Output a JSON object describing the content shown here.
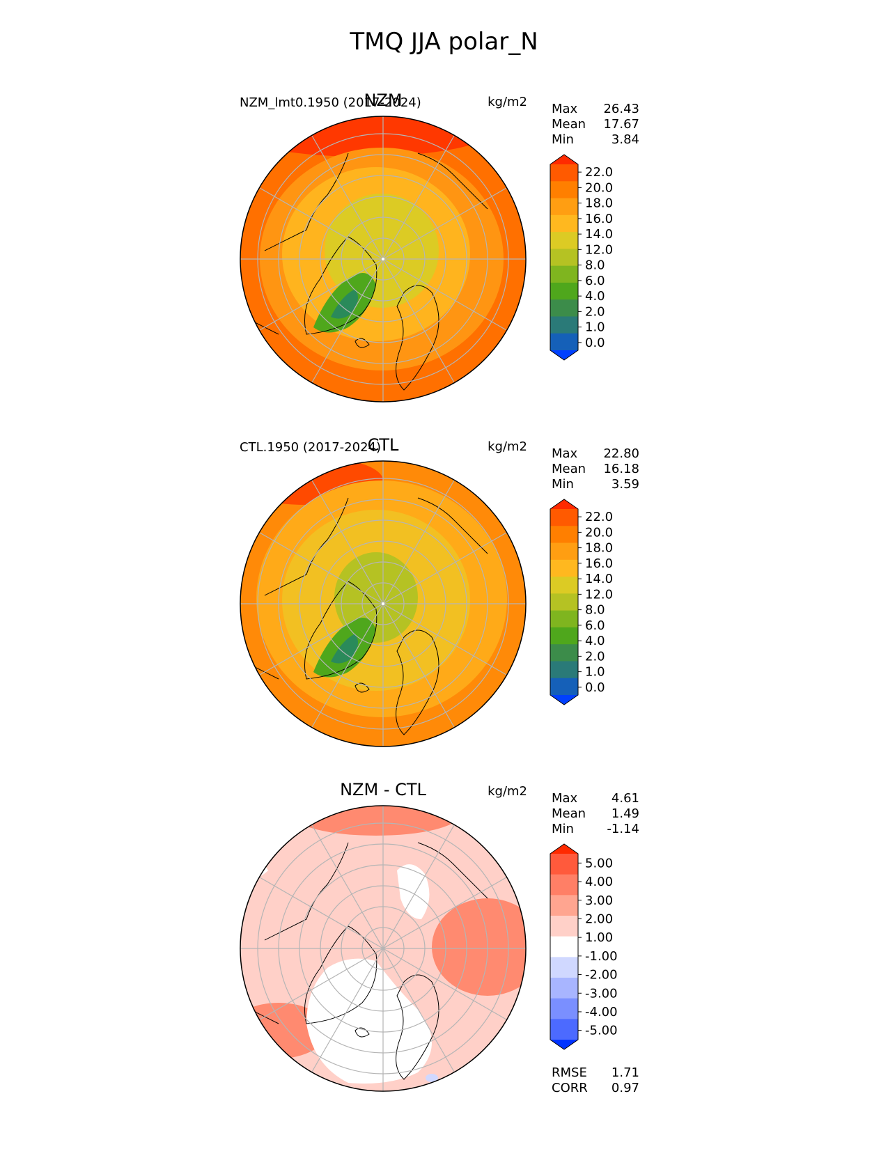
{
  "figure_title": "TMQ JJA polar_N",
  "chart_data": [
    {
      "type": "heatmap",
      "projection": "north-polar-stereographic",
      "title": "NZM",
      "left_label": "NZM_lmt0.1950 (2017-2024)",
      "units": "kg/m2",
      "stats": [
        {
          "label": "Max",
          "value": "26.43"
        },
        {
          "label": "Mean",
          "value": "17.67"
        },
        {
          "label": "Min",
          "value": "3.84"
        }
      ],
      "colorbar": {
        "ticks": [
          "22.0",
          "20.0",
          "18.0",
          "16.0",
          "14.0",
          "12.0",
          "8.0",
          "6.0",
          "4.0",
          "2.0",
          "1.0",
          "0.0"
        ],
        "colors": [
          "#ff2a00",
          "#ff5a00",
          "#ff7f00",
          "#ff9e12",
          "#ffb81f",
          "#dccb24",
          "#b5c223",
          "#7fb51f",
          "#4fa71c",
          "#3c8c4a",
          "#2a7a78",
          "#1560b8",
          "#0040ff"
        ]
      },
      "field_colors": {
        "outer": "#ff7000",
        "ring2": "#ff9512",
        "ring3": "#ffb41e",
        "polar": "#dccb24",
        "greenland": "#4fa71c",
        "greenland_core": "#2a8a5a",
        "pacific_high": "#ff3800"
      }
    },
    {
      "type": "heatmap",
      "projection": "north-polar-stereographic",
      "title": "CTL",
      "left_label": "CTL.1950 (2017-2024)",
      "units": "kg/m2",
      "stats": [
        {
          "label": "Max",
          "value": "22.80"
        },
        {
          "label": "Mean",
          "value": "16.18"
        },
        {
          "label": "Min",
          "value": "3.59"
        }
      ],
      "colorbar": {
        "ticks": [
          "22.0",
          "20.0",
          "18.0",
          "16.0",
          "14.0",
          "12.0",
          "8.0",
          "6.0",
          "4.0",
          "2.0",
          "1.0",
          "0.0"
        ],
        "colors": [
          "#ff2a00",
          "#ff5a00",
          "#ff7f00",
          "#ff9e12",
          "#ffb81f",
          "#dccb24",
          "#b5c223",
          "#7fb51f",
          "#4fa71c",
          "#3c8c4a",
          "#2a7a78",
          "#1560b8",
          "#0040ff"
        ]
      },
      "field_colors": {
        "outer": "#ff8a08",
        "ring2": "#ffaa18",
        "ring3": "#f2c022",
        "polar": "#b5c223",
        "greenland": "#4fa71c",
        "greenland_core": "#2a8a5a",
        "pacific_high": "#ff4a00"
      }
    },
    {
      "type": "heatmap",
      "projection": "north-polar-stereographic",
      "title": "NZM - CTL",
      "left_label": "",
      "units": "kg/m2",
      "stats": [
        {
          "label": "Max",
          "value": "4.61"
        },
        {
          "label": "Mean",
          "value": "1.49"
        },
        {
          "label": "Min",
          "value": "-1.14"
        }
      ],
      "metrics": [
        {
          "label": "RMSE",
          "value": "1.71"
        },
        {
          "label": "CORR",
          "value": "0.97"
        }
      ],
      "colorbar": {
        "ticks": [
          "5.00",
          "4.00",
          "3.00",
          "2.00",
          "1.00",
          "-1.00",
          "-2.00",
          "-3.00",
          "-4.00",
          "-5.00"
        ],
        "colors": [
          "#ff2a00",
          "#ff5a3c",
          "#ff7f66",
          "#ffa590",
          "#ffd0c8",
          "#ffffff",
          "#d0d8ff",
          "#a8b5ff",
          "#7a8fff",
          "#4c6aff",
          "#0033ff"
        ]
      },
      "field_colors": {
        "outer": "#ffd0c8",
        "ring2": "#ffd0c8",
        "ring3": "#ffd0c8",
        "polar": "#ffd0c8",
        "greenland": "#ffffff",
        "greenland_core": "#ffffff",
        "pacific_high": "#ff8a70"
      }
    }
  ]
}
